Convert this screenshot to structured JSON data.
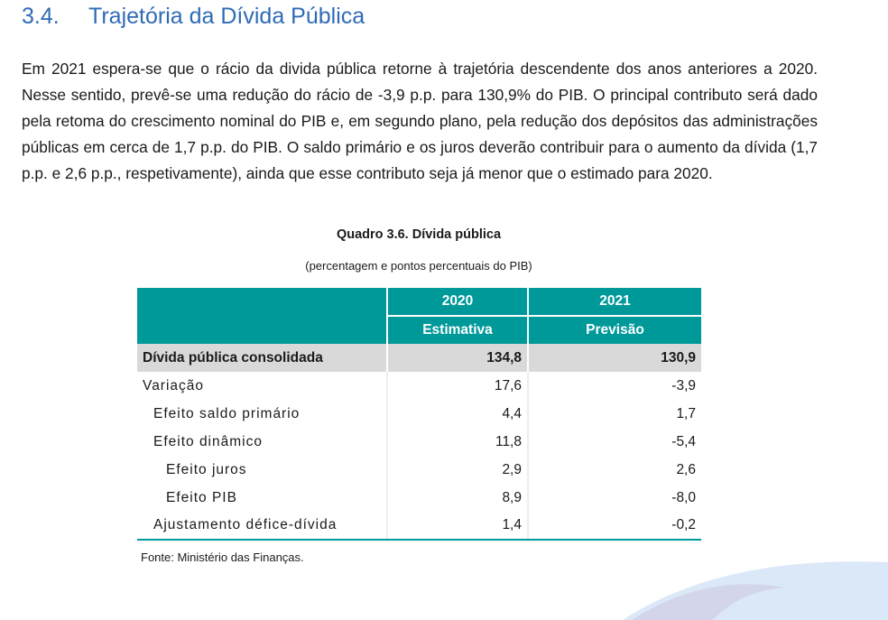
{
  "section": {
    "number": "3.4.",
    "title": "Trajetória da Dívida Pública"
  },
  "paragraph": "Em 2021 espera-se que o rácio da divida pública retorne à trajetória descendente dos anos anteriores a 2020. Nesse sentido, prevê-se uma redução do rácio de -3,9 p.p. para 130,9% do PIB. O principal contributo será dado pela retoma do crescimento nominal do PIB e, em segundo plano, pela redução dos depósitos das administrações públicas em cerca de 1,7 p.p. do PIB. O saldo primário e os juros deverão contribuir para o aumento da dívida (1,7 p.p. e 2,6 p.p., respetivamente), ainda que esse contributo seja já menor que o estimado para 2020.",
  "table": {
    "caption": "Quadro 3.6. Dívida pública",
    "subcaption": "(percentagem e pontos percentuais do PIB)",
    "years": [
      "2020",
      "2021"
    ],
    "kinds": [
      "Estimativa",
      "Previsão"
    ],
    "rows": [
      {
        "label": "Dívida pública consolidada",
        "v2020": "134,8",
        "v2021": "130,9"
      },
      {
        "label": "Variação",
        "v2020": "17,6",
        "v2021": "-3,9"
      },
      {
        "label": "Efeito saldo primário",
        "v2020": "4,4",
        "v2021": "1,7"
      },
      {
        "label": "Efeito dinâmico",
        "v2020": "11,8",
        "v2021": "-5,4"
      },
      {
        "label": "Efeito juros",
        "v2020": "2,9",
        "v2021": "2,6"
      },
      {
        "label": "Efeito PIB",
        "v2020": "8,9",
        "v2021": "-8,0"
      },
      {
        "label": "Ajustamento défice-dívida",
        "v2020": "1,4",
        "v2021": "-0,2"
      }
    ],
    "source": "Fonte: Ministério das Finanças."
  },
  "colors": {
    "accent": "#00999a",
    "title": "#2f6bb5",
    "total_row": "#d9d9d9"
  }
}
